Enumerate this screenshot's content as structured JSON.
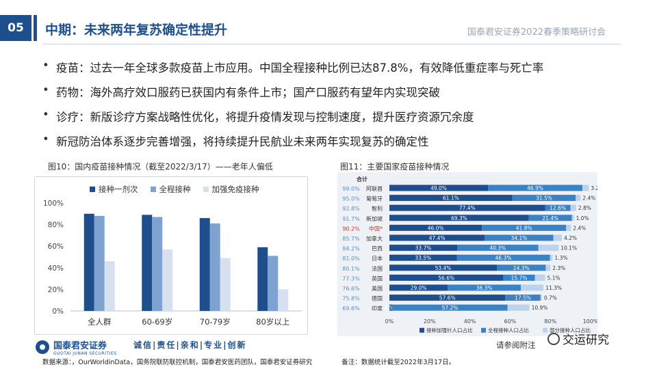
{
  "header": {
    "section_num": "05",
    "title": "中期：未来两年复苏确定性提升",
    "org": "国泰君安证券2022春季策略研讨会"
  },
  "bullets": [
    "疫苗：过去一年全球多款疫苗上市应用。中国全程接种比例已达87.8%，有效降低重症率与死亡率",
    "药物：海外高疗效口服药已获国内有条件上市；国产口服药有望年内实现突破",
    "诊疗：新版诊疗方案战略性优化，将提升疫情发现与控制速度，提升医疗资源冗余度",
    "新冠防治体系逐步完善增强，将持续提升民航业未来两年实现复苏的确定性"
  ],
  "chart_data": [
    {
      "type": "bar",
      "title": "图10：国内疫苗接种情况（截至2022/3/17）——老年人偏低",
      "categories": [
        "全人群",
        "60-69岁",
        "70-79岁",
        "80岁以上"
      ],
      "series": [
        {
          "name": "接种一剂次",
          "values": [
            90,
            89,
            86,
            59
          ],
          "color": "#1f4e8c"
        },
        {
          "name": "全程接种",
          "values": [
            88,
            87,
            81,
            51
          ],
          "color": "#7fa3d0"
        },
        {
          "name": "加强免疫接种",
          "values": [
            46,
            57,
            49,
            20
          ],
          "color": "#d7e0ee"
        }
      ],
      "ylim": [
        0,
        100
      ],
      "yticks": [
        "0%",
        "20%",
        "40%",
        "60%",
        "80%",
        "100%"
      ],
      "legend": "top"
    },
    {
      "type": "bar",
      "stacked": true,
      "orientation": "horizontal",
      "title": "图11：主要国家疫苗接种情况",
      "total_header": "合计",
      "categories": [
        "阿联酋",
        "葡萄牙",
        "智利",
        "新加坡",
        "中国*",
        "加拿大",
        "巴西",
        "日本",
        "法国",
        "英国",
        "美国",
        "德国",
        "印度"
      ],
      "totals": [
        "99.0%",
        "95.0%",
        "92.8%",
        "91.7%",
        "90.2%",
        "85.7%",
        "84.2%",
        "81.0%",
        "80.1%",
        "77.3%",
        "76.6%",
        "75.8%",
        "69.6%"
      ],
      "series": [
        {
          "name": "接种加强针人口占比",
          "values": [
            49.0,
            61.1,
            77.4,
            69.3,
            46.0,
            47.4,
            33.7,
            33.5,
            53.4,
            56.6,
            29.0,
            57.6,
            1.5
          ],
          "color": "#1f4e8c"
        },
        {
          "name": "全程接种人口占比",
          "values": [
            46.9,
            31.5,
            12.6,
            21.4,
            41.8,
            34.1,
            40.3,
            46.3,
            24.3,
            15.7,
            36.3,
            17.5,
            57.2
          ],
          "color": "#3b82c4"
        },
        {
          "name": "部分接种人口占比",
          "values": [
            3.2,
            2.4,
            2.8,
            1.0,
            2.4,
            4.2,
            10.1,
            1.3,
            2.3,
            5.1,
            11.3,
            0.7,
            10.9
          ],
          "color": "#bcd3ea"
        }
      ],
      "xlim": [
        0,
        100
      ],
      "xticks": [
        "0%",
        "20%",
        "40%",
        "60%",
        "80%",
        "100%"
      ]
    }
  ],
  "footer": {
    "logo_cn": "国泰君安证券",
    "logo_en": "GUOTAI JUNAN SECURITIES",
    "slogan": "诚信|责任|亲和|专业|创新",
    "note": "请参阅附注",
    "watermark": "交运研究",
    "source": "数据来源：，OurWorldinData，国务院联防联控机制，国泰君安医药团队，国泰君安证券研究",
    "remark": "备注：数据统计截至2022年3月17日。"
  }
}
